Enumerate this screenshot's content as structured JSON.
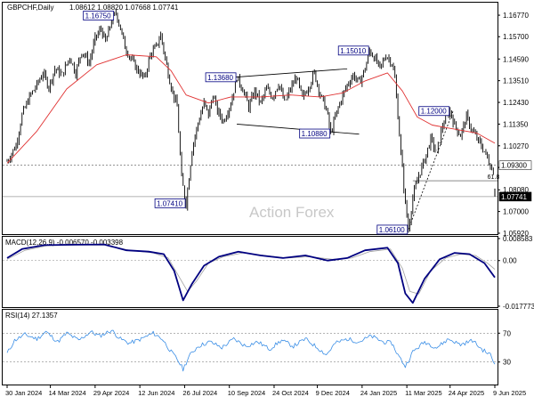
{
  "colors": {
    "price": "#000000",
    "ma": "#e03030",
    "macd": "#000080",
    "signal": "#a0a0a0",
    "rsi": "#3a8ee6",
    "label_border": "#000080",
    "watermark": "#c8c8c8"
  },
  "header": {
    "symbol": "GBPCHF,Daily",
    "ohlc": "1.08612 1.08820 1.07668 1.07741"
  },
  "watermark": "Action Forex",
  "chart_data": [
    {
      "type": "candlestick",
      "name": "price-panel",
      "ylim": [
        1.0592,
        1.1726
      ],
      "yticks": [
        "1.16770",
        "1.15700",
        "1.14590",
        "1.13510",
        "1.12430",
        "1.11350",
        "1.10270",
        "1.09190",
        "1.08080",
        "1.07000",
        "1.05920"
      ],
      "ytick_values": [
        1.1677,
        1.157,
        1.1459,
        1.1351,
        1.1243,
        1.1135,
        1.1027,
        1.0919,
        1.0808,
        1.07,
        1.0592
      ],
      "current_price": "1.07741",
      "current_value": 1.07741,
      "level_tag": "1.09300",
      "level_value": 1.093,
      "fib_label": "61.8",
      "fib_value": 1.0853,
      "path": [
        [
          0,
          1.095
        ],
        [
          6,
          1.103
        ],
        [
          10,
          1.118
        ],
        [
          15,
          1.127
        ],
        [
          20,
          1.133
        ],
        [
          24,
          1.139
        ],
        [
          28,
          1.132
        ],
        [
          32,
          1.141
        ],
        [
          37,
          1.138
        ],
        [
          42,
          1.147
        ],
        [
          46,
          1.139
        ],
        [
          50,
          1.15
        ],
        [
          55,
          1.144
        ],
        [
          59,
          1.156
        ],
        [
          63,
          1.161
        ],
        [
          66,
          1.154
        ],
        [
          70,
          1.165
        ],
        [
          73,
          1.169
        ],
        [
          75,
          1.164
        ],
        [
          79,
          1.152
        ],
        [
          83,
          1.146
        ],
        [
          87,
          1.141
        ],
        [
          92,
          1.136
        ],
        [
          96,
          1.148
        ],
        [
          100,
          1.152
        ],
        [
          103,
          1.158
        ],
        [
          106,
          1.146
        ],
        [
          110,
          1.132
        ],
        [
          114,
          1.122
        ],
        [
          117,
          1.086
        ],
        [
          120,
          1.0741
        ],
        [
          124,
          1.101
        ],
        [
          128,
          1.114
        ],
        [
          132,
          1.124
        ],
        [
          135,
          1.118
        ],
        [
          138,
          1.128
        ],
        [
          141,
          1.12
        ],
        [
          145,
          1.115
        ],
        [
          150,
          1.124
        ],
        [
          154,
          1.1368
        ],
        [
          158,
          1.131
        ],
        [
          162,
          1.122
        ],
        [
          166,
          1.13
        ],
        [
          170,
          1.124
        ],
        [
          174,
          1.131
        ],
        [
          178,
          1.127
        ],
        [
          182,
          1.134
        ],
        [
          186,
          1.124
        ],
        [
          190,
          1.131
        ],
        [
          194,
          1.137
        ],
        [
          198,
          1.126
        ],
        [
          202,
          1.132
        ],
        [
          206,
          1.139
        ],
        [
          210,
          1.128
        ],
        [
          214,
          1.121
        ],
        [
          217,
          1.1088
        ],
        [
          220,
          1.117
        ],
        [
          224,
          1.126
        ],
        [
          228,
          1.133
        ],
        [
          232,
          1.138
        ],
        [
          236,
          1.134
        ],
        [
          240,
          1.141
        ],
        [
          243,
          1.1501
        ],
        [
          246,
          1.147
        ],
        [
          250,
          1.141
        ],
        [
          254,
          1.148
        ],
        [
          258,
          1.144
        ],
        [
          260,
          1.136
        ],
        [
          262,
          1.118
        ],
        [
          264,
          1.099
        ],
        [
          267,
          1.074
        ],
        [
          269,
          1.061
        ],
        [
          272,
          1.077
        ],
        [
          276,
          1.088
        ],
        [
          280,
          1.096
        ],
        [
          284,
          1.106
        ],
        [
          288,
          1.099
        ],
        [
          292,
          1.113
        ],
        [
          295,
          1.118
        ],
        [
          297,
          1.12
        ],
        [
          300,
          1.113
        ],
        [
          304,
          1.108
        ],
        [
          308,
          1.117
        ],
        [
          312,
          1.11
        ],
        [
          316,
          1.105
        ],
        [
          320,
          1.1
        ],
        [
          324,
          1.093
        ],
        [
          326,
          1.09
        ],
        [
          327,
          1.0774
        ]
      ],
      "ma_path": [
        [
          0,
          1.094
        ],
        [
          20,
          1.11
        ],
        [
          40,
          1.131
        ],
        [
          60,
          1.143
        ],
        [
          80,
          1.148
        ],
        [
          100,
          1.147
        ],
        [
          110,
          1.14
        ],
        [
          120,
          1.128
        ],
        [
          135,
          1.124
        ],
        [
          150,
          1.127
        ],
        [
          170,
          1.127
        ],
        [
          190,
          1.128
        ],
        [
          210,
          1.127
        ],
        [
          225,
          1.129
        ],
        [
          240,
          1.135
        ],
        [
          255,
          1.139
        ],
        [
          265,
          1.13
        ],
        [
          275,
          1.117
        ],
        [
          285,
          1.113
        ],
        [
          300,
          1.111
        ],
        [
          315,
          1.109
        ],
        [
          327,
          1.104
        ]
      ],
      "labels": [
        {
          "text": "1.16750",
          "value": 1.1675,
          "t": 72,
          "side": "left"
        },
        {
          "text": "1.13680",
          "value": 1.1368,
          "t": 154,
          "side": "left"
        },
        {
          "text": "1.15010",
          "value": 1.1501,
          "t": 243,
          "side": "left"
        },
        {
          "text": "1.12000",
          "value": 1.12,
          "t": 297,
          "side": "left"
        },
        {
          "text": "1.07410",
          "value": 1.0741,
          "t": 120,
          "side": "left"
        },
        {
          "text": "1.10880",
          "value": 1.1088,
          "t": 217,
          "side": "left"
        },
        {
          "text": "1.06100",
          "value": 1.061,
          "t": 269,
          "side": "left"
        }
      ],
      "channel": [
        {
          "from": [
            152,
            1.1368
          ],
          "to": [
            228,
            1.141
          ]
        },
        {
          "from": [
            154,
            1.1135
          ],
          "to": [
            236,
            1.1085
          ]
        }
      ],
      "trendline": {
        "from": [
          269,
          1.061
        ],
        "to": [
          299,
          1.12
        ]
      }
    },
    {
      "type": "line",
      "name": "macd-panel",
      "title": "MACD(12,26,9) -0.006570 -0.003398",
      "ylim": [
        -0.017773,
        0.008583
      ],
      "yticks": [
        "0.008583",
        "0.00",
        "-0.017773"
      ],
      "ytick_values": [
        0.008583,
        0,
        -0.017773
      ],
      "series": [
        {
          "name": "MACD",
          "values": [
            [
              0,
              0.001
            ],
            [
              10,
              0.0045
            ],
            [
              25,
              0.006
            ],
            [
              45,
              0.0062
            ],
            [
              65,
              0.0063
            ],
            [
              80,
              0.004
            ],
            [
              95,
              0.0035
            ],
            [
              105,
              0.0025
            ],
            [
              112,
              -0.004
            ],
            [
              118,
              -0.0155
            ],
            [
              124,
              -0.009
            ],
            [
              132,
              -0.002
            ],
            [
              142,
              0.0015
            ],
            [
              155,
              0.0035
            ],
            [
              170,
              0.002
            ],
            [
              185,
              0.001
            ],
            [
              200,
              0.002
            ],
            [
              215,
              0.0
            ],
            [
              228,
              0.001
            ],
            [
              240,
              0.004
            ],
            [
              255,
              0.005
            ],
            [
              262,
              -0.001
            ],
            [
              267,
              -0.0128
            ],
            [
              272,
              -0.0165
            ],
            [
              280,
              -0.007
            ],
            [
              290,
              0.0005
            ],
            [
              300,
              0.003
            ],
            [
              310,
              0.0025
            ],
            [
              320,
              -0.001
            ],
            [
              327,
              -0.00657
            ]
          ]
        },
        {
          "name": "Signal",
          "values": [
            [
              0,
              0.0005
            ],
            [
              12,
              0.004
            ],
            [
              27,
              0.0058
            ],
            [
              47,
              0.006
            ],
            [
              67,
              0.006
            ],
            [
              82,
              0.004
            ],
            [
              98,
              0.003
            ],
            [
              108,
              0.001
            ],
            [
              115,
              -0.006
            ],
            [
              121,
              -0.012
            ],
            [
              127,
              -0.008
            ],
            [
              135,
              -0.001
            ],
            [
              145,
              0.0015
            ],
            [
              158,
              0.003
            ],
            [
              173,
              0.002
            ],
            [
              188,
              0.001
            ],
            [
              203,
              0.0015
            ],
            [
              218,
              0.0005
            ],
            [
              231,
              0.001
            ],
            [
              243,
              0.0035
            ],
            [
              257,
              0.0045
            ],
            [
              265,
              -0.003
            ],
            [
              270,
              -0.012
            ],
            [
              276,
              -0.013
            ],
            [
              284,
              -0.004
            ],
            [
              294,
              0.001
            ],
            [
              304,
              0.0025
            ],
            [
              314,
              0.002
            ],
            [
              322,
              -0.001
            ],
            [
              327,
              -0.0034
            ]
          ]
        }
      ]
    },
    {
      "type": "line",
      "name": "rsi-panel",
      "title": "RSI(14) 27.1357",
      "ylim": [
        0,
        100
      ],
      "yticks": [
        "70",
        "30"
      ],
      "ytick_values": [
        70,
        30
      ],
      "series": [
        {
          "name": "RSI",
          "values": [
            [
              0,
              42
            ],
            [
              5,
              60
            ],
            [
              12,
              68
            ],
            [
              20,
              62
            ],
            [
              26,
              72
            ],
            [
              34,
              58
            ],
            [
              40,
              70
            ],
            [
              48,
              60
            ],
            [
              56,
              72
            ],
            [
              62,
              66
            ],
            [
              70,
              74
            ],
            [
              76,
              62
            ],
            [
              82,
              56
            ],
            [
              90,
              62
            ],
            [
              98,
              70
            ],
            [
              104,
              62
            ],
            [
              110,
              44
            ],
            [
              114,
              34
            ],
            [
              118,
              20
            ],
            [
              122,
              38
            ],
            [
              128,
              52
            ],
            [
              136,
              58
            ],
            [
              144,
              50
            ],
            [
              152,
              62
            ],
            [
              160,
              52
            ],
            [
              168,
              58
            ],
            [
              176,
              48
            ],
            [
              184,
              60
            ],
            [
              192,
              52
            ],
            [
              200,
              62
            ],
            [
              208,
              50
            ],
            [
              214,
              40
            ],
            [
              220,
              56
            ],
            [
              228,
              62
            ],
            [
              236,
              58
            ],
            [
              244,
              66
            ],
            [
              252,
              58
            ],
            [
              258,
              56
            ],
            [
              262,
              40
            ],
            [
              267,
              24
            ],
            [
              272,
              44
            ],
            [
              280,
              58
            ],
            [
              288,
              50
            ],
            [
              296,
              62
            ],
            [
              304,
              54
            ],
            [
              312,
              60
            ],
            [
              318,
              48
            ],
            [
              324,
              40
            ],
            [
              327,
              27
            ]
          ]
        }
      ]
    }
  ],
  "xaxis": {
    "ticks": [
      "30 Jan 2024",
      "14 Mar 2024",
      "29 Apr 2024",
      "12 Jun 2024",
      "26 Jul 2024",
      "10 Sep 2024",
      "24 Oct 2024",
      "9 Dec 2024",
      "24 Jan 2025",
      "11 Mar 2025",
      "24 Apr 2025",
      "9 Jun 2025"
    ],
    "tick_positions": [
      0,
      29,
      59,
      89,
      119,
      149,
      179,
      208,
      238,
      268,
      297,
      327
    ]
  }
}
